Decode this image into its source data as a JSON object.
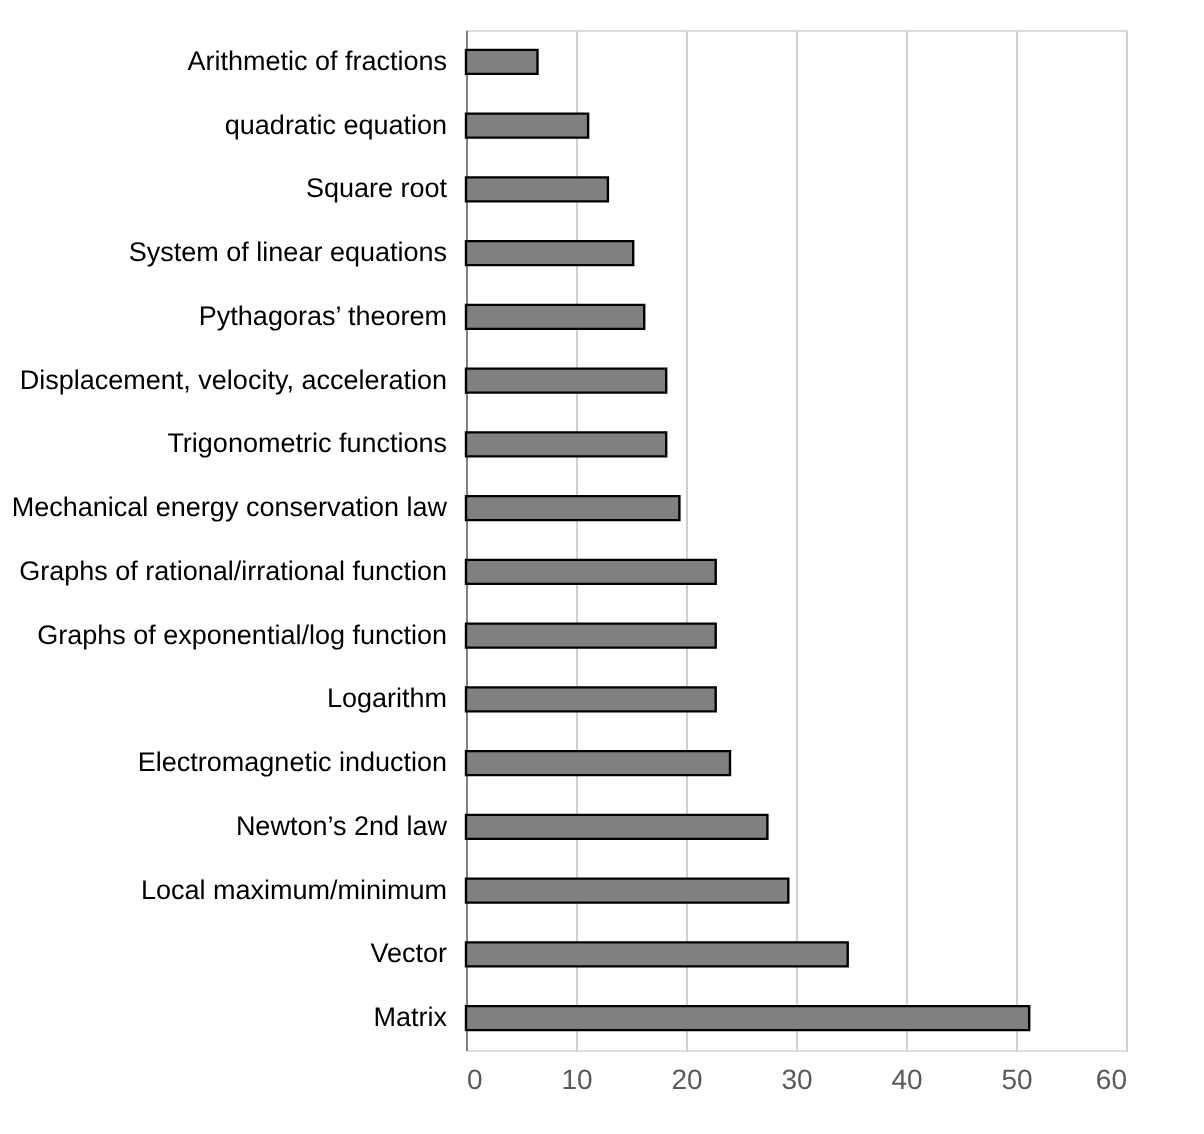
{
  "chart_data": {
    "type": "bar",
    "orientation": "horizontal",
    "categories": [
      "Arithmetic of fractions",
      "quadratic equation",
      "Square root",
      "System of linear equations",
      "Pythagoras’ theorem",
      "Displacement, velocity, acceleration",
      "Trigonometric functions",
      "Mechanical energy conservation law",
      "Graphs of rational/irrational function",
      "Graphs of exponential/log function",
      "Logarithm",
      "Electromagnetic induction",
      "Newton’s 2nd law",
      "Local maximum/minimum",
      "Vector",
      "Matrix"
    ],
    "values": [
      6.5,
      11.1,
      12.9,
      15.2,
      16.2,
      18.2,
      18.2,
      19.4,
      22.7,
      22.7,
      22.7,
      24.0,
      27.4,
      29.3,
      34.7,
      51.2
    ],
    "color": "#808080",
    "xlim": [
      0,
      60
    ],
    "xticks": [
      0,
      10,
      20,
      30,
      40,
      50,
      60
    ],
    "grid": "x"
  }
}
